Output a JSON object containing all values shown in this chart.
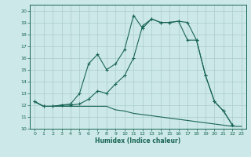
{
  "xlabel": "Humidex (Indice chaleur)",
  "bg_color": "#cce8e8",
  "grid_color": "#aacccc",
  "line_color": "#1a6655",
  "xlim": [
    -0.5,
    23.5
  ],
  "ylim": [
    10,
    20.5
  ],
  "xticks": [
    0,
    1,
    2,
    3,
    4,
    5,
    6,
    7,
    8,
    9,
    10,
    11,
    12,
    13,
    14,
    15,
    16,
    17,
    18,
    19,
    20,
    21,
    22,
    23
  ],
  "yticks": [
    10,
    11,
    12,
    13,
    14,
    15,
    16,
    17,
    18,
    19,
    20
  ],
  "curve_jagged_x": [
    0,
    1,
    2,
    3,
    4,
    5,
    6,
    7,
    8,
    9,
    10,
    11,
    12,
    13,
    14,
    15,
    16,
    17,
    18,
    19,
    20,
    21,
    22
  ],
  "curve_jagged_y": [
    12.3,
    11.9,
    11.9,
    12.0,
    12.1,
    13.0,
    15.5,
    16.3,
    15.0,
    15.5,
    16.7,
    19.6,
    18.5,
    19.3,
    19.0,
    19.0,
    19.1,
    19.0,
    17.5,
    14.5,
    12.3,
    11.5,
    10.3
  ],
  "curve_smooth_x": [
    0,
    1,
    2,
    3,
    4,
    5,
    6,
    7,
    8,
    9,
    10,
    11,
    12,
    13,
    14,
    15,
    16,
    17,
    18,
    19,
    20,
    21,
    22
  ],
  "curve_smooth_y": [
    12.3,
    11.9,
    11.9,
    12.0,
    12.0,
    12.1,
    12.5,
    13.2,
    13.0,
    13.8,
    14.5,
    16.0,
    18.7,
    19.3,
    19.0,
    19.0,
    19.1,
    17.5,
    17.5,
    14.5,
    12.3,
    11.5,
    10.3
  ],
  "curve_lower_x": [
    0,
    1,
    2,
    3,
    4,
    5,
    6,
    7,
    8,
    9,
    10,
    11,
    12,
    13,
    14,
    15,
    16,
    17,
    18,
    19,
    20,
    21,
    22,
    23
  ],
  "curve_lower_y": [
    12.3,
    11.9,
    11.9,
    11.9,
    11.9,
    11.9,
    11.9,
    11.9,
    11.9,
    11.6,
    11.5,
    11.3,
    11.2,
    11.1,
    11.0,
    10.9,
    10.8,
    10.7,
    10.6,
    10.5,
    10.4,
    10.3,
    10.2,
    10.2
  ]
}
